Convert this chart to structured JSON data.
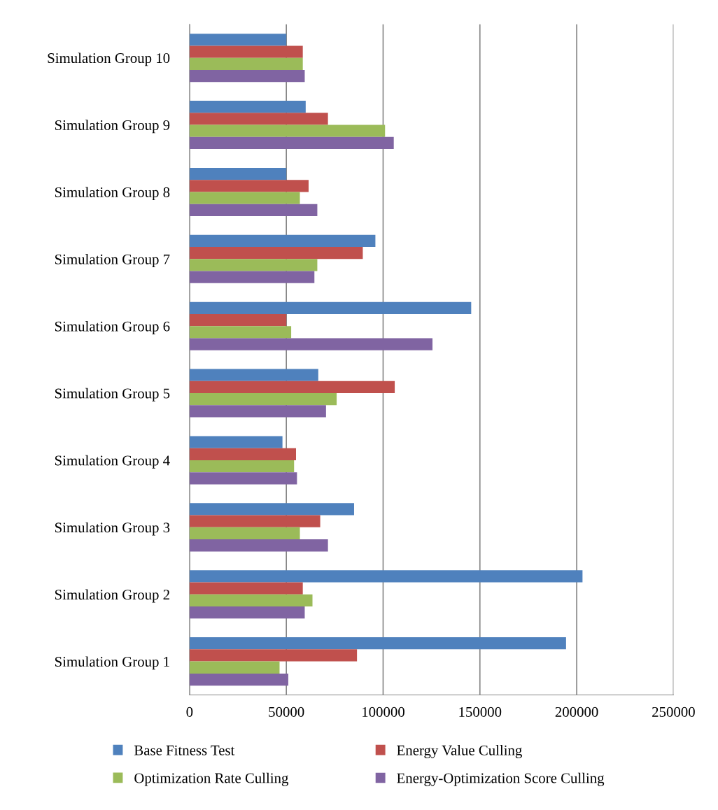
{
  "chart_data": {
    "type": "bar",
    "orientation": "horizontal",
    "categories": [
      "Simulation Group 10",
      "Simulation Group 9",
      "Simulation Group 8",
      "Simulation Group 7",
      "Simulation Group 6",
      "Simulation Group 5",
      "Simulation Group 4",
      "Simulation Group 3",
      "Simulation Group 2",
      "Simulation Group 1"
    ],
    "series": [
      {
        "name": "Base Fitness Test",
        "color": "#4f81bd",
        "values": [
          50000,
          60000,
          50000,
          96000,
          145500,
          66500,
          48000,
          85000,
          203000,
          194500
        ]
      },
      {
        "name": "Energy Value Culling",
        "color": "#c0504d",
        "values": [
          58500,
          71500,
          61500,
          89500,
          50000,
          106000,
          55000,
          67500,
          58500,
          86500
        ]
      },
      {
        "name": "Optimization Rate Culling",
        "color": "#9bbb59",
        "values": [
          58500,
          101000,
          57000,
          66000,
          52500,
          76000,
          54000,
          57000,
          63500,
          46500
        ]
      },
      {
        "name": "Energy-Optimization Score Culling",
        "color": "#8064a2",
        "values": [
          59500,
          105500,
          66000,
          64500,
          125500,
          70500,
          55500,
          71500,
          59500,
          51000
        ]
      }
    ],
    "xlim": [
      0,
      250000
    ],
    "xticks": [
      0,
      50000,
      100000,
      150000,
      200000,
      250000
    ],
    "grid": "x",
    "legend": "bottom"
  }
}
